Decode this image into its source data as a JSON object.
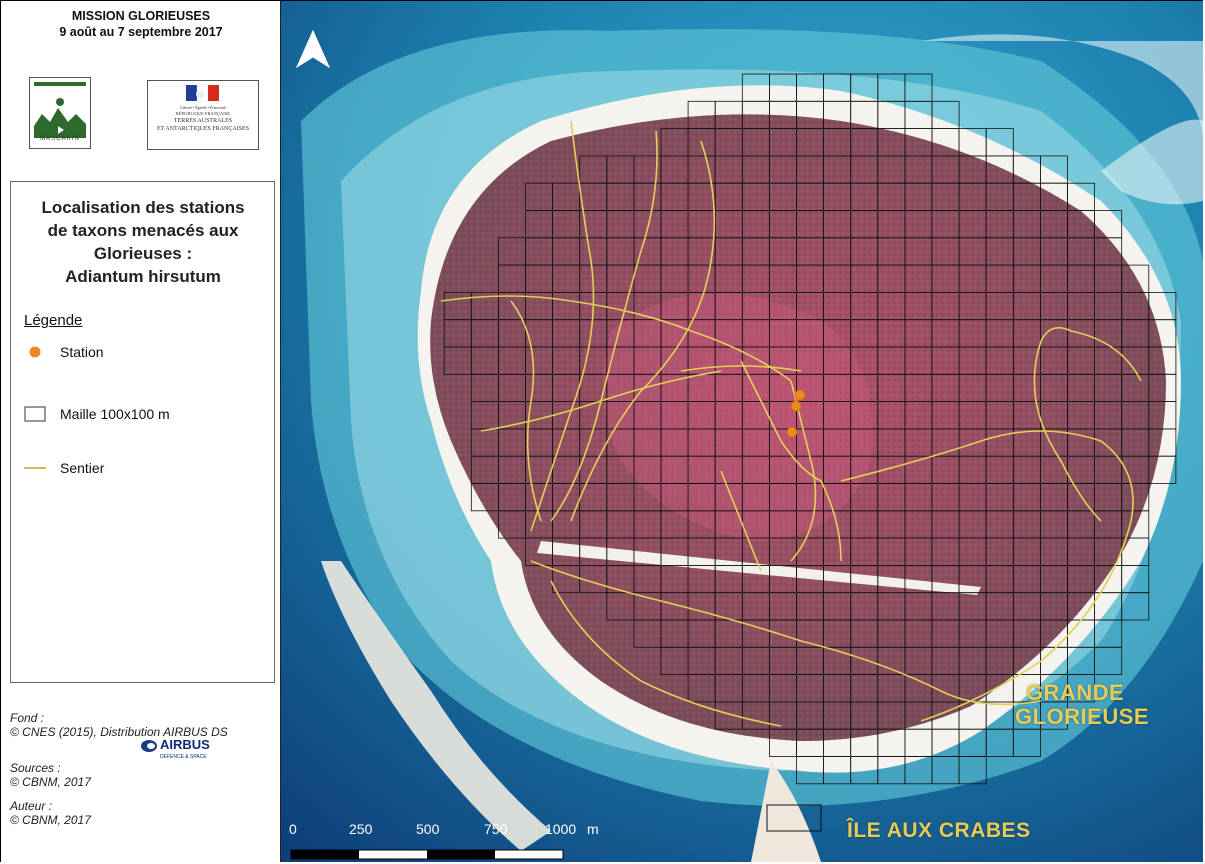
{
  "header": {
    "mission": "MISSION GLORIEUSES",
    "dates": "9 août au 7 septembre 2017"
  },
  "logos": {
    "mascarin_text": "MASCARIN",
    "taaf_line1": "Liberté • Égalité • Fraternité",
    "taaf_line2": "RÉPUBLIQUE FRANÇAISE",
    "taaf_line3": "TERRES AUSTRALES",
    "taaf_line4": "ET ANTARCTIQUES FRANÇAISES",
    "airbus_name": "AIRBUS",
    "airbus_sub": "DEFENCE & SPACE"
  },
  "map_title": {
    "line1": "Localisation des stations",
    "line2": "de taxons menacés aux",
    "line3": "Glorieuses :",
    "line4": "Adiantum hirsutum"
  },
  "legend": {
    "title": "Légende",
    "station": "Station",
    "grid": "Maille 100x100 m",
    "trail": "Sentier"
  },
  "credits": {
    "fond_label": "Fond :",
    "fond_value": "© CNES (2015), Distribution AIRBUS DS",
    "sources_label": "Sources :",
    "sources_value": "© CBNM, 2017",
    "auteur_label": "Auteur :",
    "auteur_value": "© CBNM, 2017"
  },
  "places": {
    "grande_line1": "GRANDE",
    "grande_line2": "GLORIEUSE",
    "crabes": "ÎLE AUX CRABES"
  },
  "scalebar": {
    "t0": "0",
    "t1": "250",
    "t2": "500",
    "t3": "750",
    "t4": "1000",
    "unit": "m"
  },
  "colors": {
    "station": "#ee8a22",
    "trail": "#e3cf58",
    "grid": "#111111",
    "land": "#8a5562",
    "sea": "#1c86b3",
    "label": "#e8cb55"
  },
  "icons": {
    "north": "north-arrow-icon"
  }
}
